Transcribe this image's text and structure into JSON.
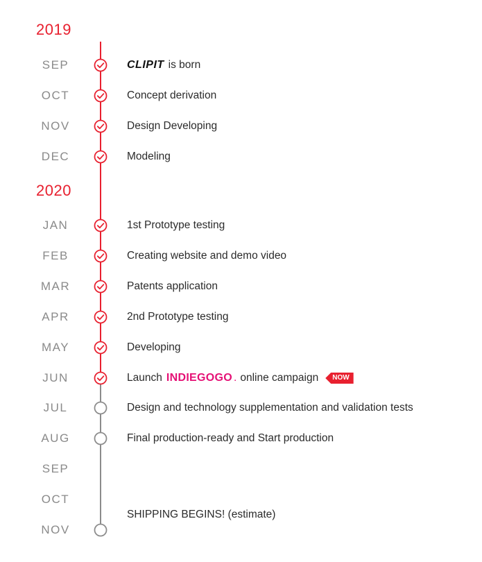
{
  "years": [
    {
      "label": "2019"
    },
    {
      "label": "2020"
    }
  ],
  "colors": {
    "done": "#e8202f",
    "pending": "#8c8c8c",
    "year": "#e8202f"
  },
  "rows": [
    {
      "month": "SEP",
      "text": "is born",
      "status": "done",
      "logo": "CLIPIT"
    },
    {
      "month": "OCT",
      "text": "Concept derivation",
      "status": "done"
    },
    {
      "month": "NOV",
      "text": "Design Developing",
      "status": "done"
    },
    {
      "month": "DEC",
      "text": "Modeling",
      "status": "done"
    },
    {
      "month": "JAN",
      "text": "1st Prototype testing",
      "status": "done"
    },
    {
      "month": "FEB",
      "text": "Creating website and demo video",
      "status": "done"
    },
    {
      "month": "MAR",
      "text": "Patents application",
      "status": "done"
    },
    {
      "month": "APR",
      "text": "2nd Prototype testing",
      "status": "done"
    },
    {
      "month": "MAY",
      "text": "Developing",
      "status": "done"
    },
    {
      "month": "JUN",
      "text_before": "Launch",
      "logo": "INDIEGOGO",
      "text": "online campaign",
      "badge": "NOW",
      "status": "done"
    },
    {
      "month": "JUL",
      "text": "Design and technology supplementation and validation tests",
      "status": "pending"
    },
    {
      "month": "AUG",
      "text": "Final production-ready and Start production",
      "status": "pending"
    },
    {
      "month": "SEP",
      "text": "",
      "status": "none"
    },
    {
      "month": "OCT",
      "text": "",
      "status": "none"
    },
    {
      "month": "NOV",
      "text": "SHIPPING BEGINS! (estimate)",
      "status": "pending"
    }
  ]
}
